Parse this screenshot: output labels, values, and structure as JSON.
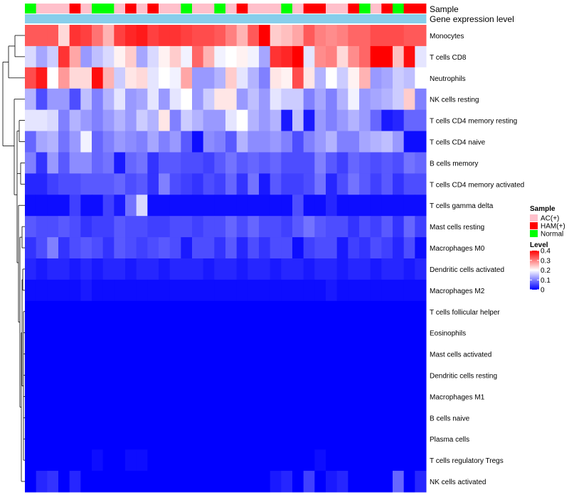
{
  "chart_data": {
    "type": "heatmap",
    "title": "",
    "annotation_labels": {
      "sample": "Sample",
      "expression": "Gene expression level"
    },
    "rows": [
      "Monocytes",
      "T cells CD8",
      "Neutrophils",
      "NK cells resting",
      "T cells CD4 memory resting",
      "T cells CD4 naive",
      "B cells memory",
      "T cells CD4 memory activated",
      "T cells gamma delta",
      "Mast cells resting",
      "Macrophages M0",
      "Dendritic cells activated",
      "Macrophages M2",
      "T cells follicular helper",
      "Eosinophils",
      "Mast cells activated",
      "Dendritic cells resting",
      "Macrophages M1",
      "B cells naive",
      "Plasma cells",
      "T cells regulatory  Tregs",
      "NK cells activated"
    ],
    "sample_groups": [
      "Normal",
      "AC(+)",
      "AC(+)",
      "AC(+)",
      "HAM(+)",
      "AC(+)",
      "Normal",
      "Normal",
      "AC(+)",
      "HAM(+)",
      "AC(+)",
      "HAM(+)",
      "AC(+)",
      "AC(+)",
      "Normal",
      "AC(+)",
      "AC(+)",
      "Normal",
      "AC(+)",
      "HAM(+)",
      "AC(+)",
      "AC(+)",
      "AC(+)",
      "Normal",
      "AC(+)",
      "HAM(+)",
      "HAM(+)",
      "AC(+)",
      "AC(+)",
      "HAM(+)",
      "Normal",
      "AC(+)",
      "HAM(+)",
      "Normal",
      "HAM(+)",
      "HAM(+)"
    ],
    "legend": {
      "sample_title": "Sample",
      "sample_levels": [
        "AC(+)",
        "HAM(+)",
        "Normal"
      ],
      "sample_colors": {
        "AC(+)": "#ffc0cb",
        "HAM(+)": "#ff0000",
        "Normal": "#00ff00"
      },
      "level_title": "Level",
      "level_ticks": [
        "0.4",
        "0.3",
        "0.2",
        "0.1",
        "0"
      ],
      "level_range": [
        0,
        0.4
      ]
    },
    "expression_bar_color": "#87ceeb",
    "color_scale": {
      "low": "#0000ff",
      "mid": "#ffffff",
      "high": "#ff0000",
      "midpoint": 0.2
    },
    "values": [
      [
        0.33,
        0.33,
        0.33,
        0.23,
        0.36,
        0.35,
        0.31,
        0.26,
        0.35,
        0.37,
        0.38,
        0.35,
        0.36,
        0.36,
        0.35,
        0.34,
        0.34,
        0.33,
        0.3,
        0.26,
        0.33,
        0.4,
        0.24,
        0.25,
        0.27,
        0.33,
        0.3,
        0.29,
        0.3,
        0.32,
        0.32,
        0.34,
        0.34,
        0.34,
        0.33,
        0.33
      ],
      [
        0.17,
        0.13,
        0.16,
        0.36,
        0.27,
        0.12,
        0.15,
        0.17,
        0.21,
        0.24,
        0.13,
        0.17,
        0.21,
        0.24,
        0.19,
        0.32,
        0.26,
        0.19,
        0.2,
        0.21,
        0.19,
        0.13,
        0.36,
        0.37,
        0.4,
        0.18,
        0.29,
        0.3,
        0.23,
        0.29,
        0.32,
        0.4,
        0.4,
        0.25,
        0.39,
        0.18
      ],
      [
        0.34,
        0.38,
        0.2,
        0.28,
        0.23,
        0.23,
        0.39,
        0.26,
        0.16,
        0.22,
        0.23,
        0.18,
        0.2,
        0.19,
        0.27,
        0.12,
        0.12,
        0.14,
        0.24,
        0.18,
        0.14,
        0.1,
        0.22,
        0.21,
        0.34,
        0.22,
        0.14,
        0.2,
        0.16,
        0.21,
        0.26,
        0.12,
        0.13,
        0.16,
        0.15,
        0.2
      ],
      [
        0.14,
        0.06,
        0.12,
        0.12,
        0.06,
        0.15,
        0.1,
        0.14,
        0.18,
        0.12,
        0.13,
        0.18,
        0.12,
        0.18,
        0.2,
        0.12,
        0.16,
        0.22,
        0.22,
        0.12,
        0.15,
        0.12,
        0.18,
        0.16,
        0.16,
        0.1,
        0.13,
        0.1,
        0.14,
        0.19,
        0.12,
        0.13,
        0.14,
        0.16,
        0.24,
        0.1
      ],
      [
        0.18,
        0.18,
        0.17,
        0.1,
        0.14,
        0.12,
        0.1,
        0.12,
        0.14,
        0.12,
        0.16,
        0.14,
        0.22,
        0.1,
        0.16,
        0.14,
        0.12,
        0.12,
        0.18,
        0.2,
        0.14,
        0.12,
        0.14,
        0.02,
        0.15,
        0.02,
        0.12,
        0.1,
        0.12,
        0.14,
        0.12,
        0.08,
        0.02,
        0.03,
        0.08,
        0.08
      ],
      [
        0.08,
        0.13,
        0.14,
        0.09,
        0.12,
        0.19,
        0.08,
        0.1,
        0.12,
        0.11,
        0.1,
        0.13,
        0.1,
        0.12,
        0.07,
        0.01,
        0.11,
        0.1,
        0.07,
        0.14,
        0.11,
        0.11,
        0.12,
        0.1,
        0.06,
        0.1,
        0.12,
        0.14,
        0.1,
        0.1,
        0.13,
        0.14,
        0.15,
        0.12,
        0.01,
        0.01
      ],
      [
        0.1,
        0.04,
        0.12,
        0.07,
        0.11,
        0.11,
        0.08,
        0.09,
        0.02,
        0.08,
        0.09,
        0.04,
        0.07,
        0.07,
        0.06,
        0.06,
        0.05,
        0.07,
        0.09,
        0.07,
        0.08,
        0.07,
        0.08,
        0.06,
        0.06,
        0.06,
        0.1,
        0.07,
        0.05,
        0.08,
        0.07,
        0.06,
        0.07,
        0.06,
        0.09,
        0.08
      ],
      [
        0.03,
        0.03,
        0.05,
        0.06,
        0.06,
        0.07,
        0.07,
        0.07,
        0.08,
        0.06,
        0.07,
        0.04,
        0.1,
        0.06,
        0.05,
        0.04,
        0.06,
        0.05,
        0.08,
        0.04,
        0.09,
        0.02,
        0.07,
        0.05,
        0.05,
        0.06,
        0.09,
        0.03,
        0.06,
        0.09,
        0.07,
        0.05,
        0.07,
        0.04,
        0.06,
        0.06
      ],
      [
        0.01,
        0.01,
        0.01,
        0.01,
        0.05,
        0.01,
        0.01,
        0.05,
        0.02,
        0.09,
        0.17,
        0.01,
        0.01,
        0.01,
        0.01,
        0.01,
        0.01,
        0.01,
        0.01,
        0.01,
        0.01,
        0.01,
        0.01,
        0.01,
        0.06,
        0.01,
        0.01,
        0.03,
        0.01,
        0.01,
        0.01,
        0.01,
        0.01,
        0.01,
        0.01,
        0.01
      ],
      [
        0.07,
        0.06,
        0.06,
        0.07,
        0.06,
        0.04,
        0.05,
        0.05,
        0.07,
        0.06,
        0.06,
        0.05,
        0.05,
        0.06,
        0.06,
        0.05,
        0.06,
        0.06,
        0.08,
        0.06,
        0.08,
        0.06,
        0.06,
        0.05,
        0.07,
        0.09,
        0.07,
        0.06,
        0.06,
        0.04,
        0.06,
        0.05,
        0.07,
        0.04,
        0.08,
        0.05
      ],
      [
        0.04,
        0.06,
        0.1,
        0.04,
        0.06,
        0.07,
        0.06,
        0.04,
        0.07,
        0.06,
        0.05,
        0.06,
        0.07,
        0.06,
        0.02,
        0.06,
        0.06,
        0.04,
        0.07,
        0.03,
        0.06,
        0.04,
        0.06,
        0.06,
        0.01,
        0.05,
        0.06,
        0.06,
        0.02,
        0.05,
        0.04,
        0.06,
        0.05,
        0.03,
        0.06,
        0.01
      ],
      [
        0.03,
        0.02,
        0.03,
        0.03,
        0.02,
        0.03,
        0.02,
        0.03,
        0.03,
        0.02,
        0.03,
        0.03,
        0.02,
        0.03,
        0.03,
        0.03,
        0.02,
        0.03,
        0.03,
        0.02,
        0.03,
        0.03,
        0.02,
        0.03,
        0.03,
        0.02,
        0.03,
        0.03,
        0.02,
        0.03,
        0.03,
        0.02,
        0.03,
        0.03,
        0.02,
        0.03
      ],
      [
        0.01,
        0.01,
        0.01,
        0.01,
        0.01,
        0.02,
        0.01,
        0.01,
        0.01,
        0.01,
        0.01,
        0.01,
        0.01,
        0.01,
        0.01,
        0.01,
        0.01,
        0.01,
        0.01,
        0.01,
        0.01,
        0.01,
        0.01,
        0.01,
        0.01,
        0.01,
        0.01,
        0.02,
        0.01,
        0.01,
        0.01,
        0.01,
        0.01,
        0.01,
        0.01,
        0.01
      ],
      [
        0.0,
        0.0,
        0.0,
        0.0,
        0.0,
        0.0,
        0.0,
        0.0,
        0.0,
        0.0,
        0.0,
        0.0,
        0.0,
        0.0,
        0.0,
        0.0,
        0.0,
        0.0,
        0.0,
        0.0,
        0.0,
        0.0,
        0.0,
        0.0,
        0.0,
        0.0,
        0.0,
        0.0,
        0.0,
        0.0,
        0.0,
        0.0,
        0.0,
        0.0,
        0.0,
        0.0
      ],
      [
        0.0,
        0.0,
        0.0,
        0.0,
        0.0,
        0.0,
        0.0,
        0.0,
        0.0,
        0.0,
        0.0,
        0.0,
        0.0,
        0.0,
        0.0,
        0.0,
        0.0,
        0.0,
        0.0,
        0.0,
        0.0,
        0.0,
        0.0,
        0.0,
        0.0,
        0.0,
        0.0,
        0.0,
        0.0,
        0.0,
        0.0,
        0.0,
        0.0,
        0.0,
        0.0,
        0.0
      ],
      [
        0.0,
        0.0,
        0.0,
        0.0,
        0.0,
        0.0,
        0.0,
        0.0,
        0.0,
        0.0,
        0.0,
        0.0,
        0.0,
        0.0,
        0.0,
        0.0,
        0.0,
        0.0,
        0.0,
        0.0,
        0.0,
        0.0,
        0.0,
        0.0,
        0.0,
        0.0,
        0.0,
        0.0,
        0.0,
        0.0,
        0.0,
        0.0,
        0.0,
        0.0,
        0.0,
        0.0
      ],
      [
        0.0,
        0.0,
        0.0,
        0.0,
        0.0,
        0.0,
        0.0,
        0.0,
        0.0,
        0.0,
        0.0,
        0.0,
        0.0,
        0.0,
        0.0,
        0.0,
        0.0,
        0.0,
        0.0,
        0.0,
        0.0,
        0.0,
        0.0,
        0.0,
        0.0,
        0.0,
        0.0,
        0.0,
        0.0,
        0.0,
        0.0,
        0.0,
        0.0,
        0.0,
        0.0,
        0.0
      ],
      [
        0.0,
        0.0,
        0.0,
        0.0,
        0.0,
        0.0,
        0.0,
        0.0,
        0.0,
        0.0,
        0.0,
        0.0,
        0.0,
        0.0,
        0.0,
        0.0,
        0.0,
        0.0,
        0.0,
        0.0,
        0.0,
        0.0,
        0.0,
        0.0,
        0.0,
        0.0,
        0.0,
        0.0,
        0.0,
        0.0,
        0.0,
        0.0,
        0.0,
        0.0,
        0.0,
        0.0
      ],
      [
        0.0,
        0.0,
        0.0,
        0.0,
        0.0,
        0.0,
        0.0,
        0.0,
        0.0,
        0.0,
        0.0,
        0.0,
        0.0,
        0.0,
        0.0,
        0.0,
        0.0,
        0.0,
        0.0,
        0.0,
        0.0,
        0.0,
        0.0,
        0.0,
        0.0,
        0.0,
        0.0,
        0.0,
        0.0,
        0.0,
        0.0,
        0.0,
        0.0,
        0.0,
        0.0,
        0.0
      ],
      [
        0.0,
        0.0,
        0.0,
        0.0,
        0.0,
        0.0,
        0.0,
        0.0,
        0.0,
        0.0,
        0.0,
        0.0,
        0.0,
        0.0,
        0.0,
        0.0,
        0.0,
        0.0,
        0.0,
        0.0,
        0.0,
        0.0,
        0.0,
        0.0,
        0.0,
        0.0,
        0.0,
        0.0,
        0.0,
        0.0,
        0.0,
        0.0,
        0.0,
        0.0,
        0.0,
        0.0
      ],
      [
        0.0,
        0.0,
        0.0,
        0.0,
        0.0,
        0.0,
        0.01,
        0.0,
        0.0,
        0.01,
        0.01,
        0.0,
        0.0,
        0.0,
        0.0,
        0.0,
        0.0,
        0.0,
        0.0,
        0.0,
        0.0,
        0.0,
        0.0,
        0.0,
        0.0,
        0.0,
        0.01,
        0.0,
        0.0,
        0.0,
        0.0,
        0.0,
        0.0,
        0.0,
        0.0,
        0.0
      ],
      [
        0.0,
        0.03,
        0.04,
        0.0,
        0.03,
        0.0,
        0.0,
        0.0,
        0.0,
        0.0,
        0.0,
        0.0,
        0.0,
        0.0,
        0.0,
        0.0,
        0.0,
        0.0,
        0.0,
        0.0,
        0.0,
        0.0,
        0.02,
        0.03,
        0.0,
        0.05,
        0.0,
        0.02,
        0.03,
        0.0,
        0.0,
        0.0,
        0.0,
        0.08,
        0.0,
        0.03
      ]
    ]
  }
}
